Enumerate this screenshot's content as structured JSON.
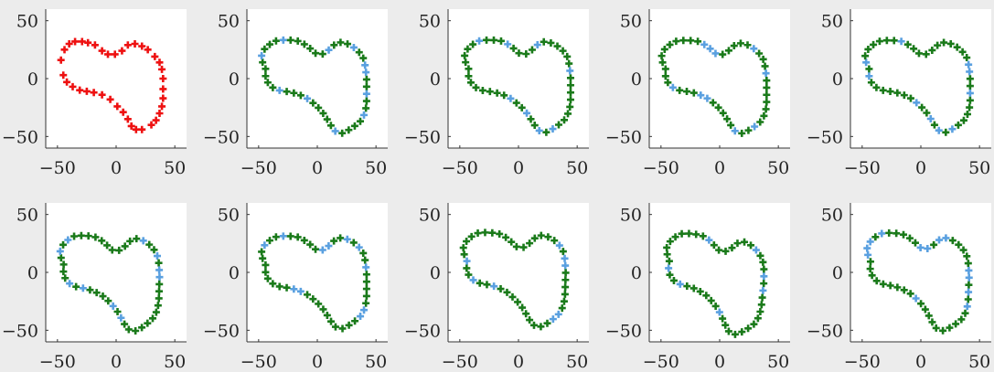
{
  "colors": {
    "figure_background": "#ececec",
    "axes_background": "#ffffff",
    "axis_line": "#333333",
    "reference_marker": "#ee1111",
    "green_marker": "#1a7a1a",
    "blue_marker": "#5aa0e0"
  },
  "chart_data": {
    "type": "scatter",
    "layout": "2 rows x 5 columns small multiples",
    "marker": "plus",
    "xlim": [
      -60,
      60
    ],
    "ylim": [
      -60,
      60
    ],
    "xticks": [
      -50,
      0,
      50
    ],
    "yticks": [
      -50,
      0,
      50
    ],
    "xtick_labels": [
      "−50",
      "0",
      "50"
    ],
    "ytick_labels": [
      "−50",
      "0",
      "50"
    ],
    "grid": false,
    "legend": "none",
    "base_shape": [
      [
        -42,
        8
      ],
      [
        -46,
        17
      ],
      [
        -42,
        26
      ],
      [
        -34,
        31
      ],
      [
        -25,
        32
      ],
      [
        -16,
        31
      ],
      [
        -8,
        27
      ],
      [
        -2,
        21
      ],
      [
        4,
        20
      ],
      [
        10,
        24
      ],
      [
        15,
        29
      ],
      [
        20,
        30
      ],
      [
        26,
        28
      ],
      [
        32,
        24
      ],
      [
        37,
        18
      ],
      [
        39,
        10
      ],
      [
        40,
        0
      ],
      [
        40,
        -10
      ],
      [
        40,
        -20
      ],
      [
        39,
        -28
      ],
      [
        35,
        -35
      ],
      [
        28,
        -41
      ],
      [
        20,
        -45
      ],
      [
        14,
        -43
      ],
      [
        10,
        -37
      ],
      [
        6,
        -30
      ],
      [
        0,
        -23
      ],
      [
        -7,
        -17
      ],
      [
        -15,
        -13
      ],
      [
        -22,
        -11
      ],
      [
        -30,
        -10
      ],
      [
        -37,
        -7
      ],
      [
        -42,
        -1
      ]
    ],
    "panels": [
      {
        "row": 0,
        "col": 0,
        "colors": [
          "red"
        ],
        "points": [
          [
            -47,
            16
          ],
          [
            -44,
            25
          ],
          [
            -40,
            30
          ],
          [
            -35,
            32
          ],
          [
            -29,
            32
          ],
          [
            -24,
            31
          ],
          [
            -18,
            29
          ],
          [
            -12,
            24
          ],
          [
            -7,
            21
          ],
          [
            -1,
            21
          ],
          [
            5,
            24
          ],
          [
            10,
            29
          ],
          [
            16,
            30
          ],
          [
            22,
            28
          ],
          [
            27,
            25
          ],
          [
            33,
            19
          ],
          [
            37,
            14
          ],
          [
            39,
            8
          ],
          [
            40,
            0
          ],
          [
            40,
            -9
          ],
          [
            40,
            -17
          ],
          [
            39,
            -24
          ],
          [
            37,
            -30
          ],
          [
            34,
            -36
          ],
          [
            30,
            -40
          ],
          [
            22,
            -44
          ],
          [
            17,
            -44
          ],
          [
            13,
            -41
          ],
          [
            10,
            -35
          ],
          [
            6,
            -29
          ],
          [
            1,
            -24
          ],
          [
            -5,
            -18
          ],
          [
            -12,
            -14
          ],
          [
            -19,
            -12
          ],
          [
            -25,
            -11
          ],
          [
            -31,
            -10
          ],
          [
            -37,
            -7
          ],
          [
            -42,
            -3
          ],
          [
            -45,
            3
          ]
        ]
      },
      {
        "row": 0,
        "col": 1,
        "colors": [
          "green",
          "blue"
        ],
        "transform": [
          0,
          0,
          0,
          1.05,
          1.05,
          0,
          0
        ]
      },
      {
        "row": 0,
        "col": 2,
        "colors": [
          "green",
          "blue"
        ],
        "transform": [
          0,
          2,
          0,
          1.06,
          1.05,
          0.25,
          11
        ]
      },
      {
        "row": 0,
        "col": 3,
        "colors": [
          "green",
          "blue"
        ],
        "transform": [
          0,
          -2,
          0,
          1.05,
          1.04,
          -0.2,
          22
        ]
      },
      {
        "row": 0,
        "col": 4,
        "colors": [
          "green",
          "blue"
        ],
        "transform": [
          0,
          0,
          0,
          1.05,
          1.04,
          0.1,
          33
        ]
      },
      {
        "row": 1,
        "col": 0,
        "colors": [
          "green",
          "blue"
        ],
        "transform": [
          -0.03,
          -3,
          -3,
          1,
          1.07,
          0.3,
          44
        ]
      },
      {
        "row": 1,
        "col": 1,
        "colors": [
          "green",
          "blue"
        ],
        "transform": [
          0,
          0,
          -2,
          1.05,
          1.05,
          0.2,
          55
        ]
      },
      {
        "row": 1,
        "col": 2,
        "colors": [
          "green",
          "blue"
        ],
        "transform": [
          -0.03,
          -1,
          0,
          1.03,
          1.06,
          0.4,
          66
        ]
      },
      {
        "row": 1,
        "col": 3,
        "colors": [
          "green",
          "blue"
        ],
        "transform": [
          -0.1,
          -2,
          -3,
          1,
          1.07,
          -0.3,
          77
        ]
      },
      {
        "row": 1,
        "col": 4,
        "colors": [
          "green",
          "blue"
        ],
        "transform": [
          -0.04,
          0,
          -1,
          1.03,
          1.07,
          -0.2,
          88
        ]
      }
    ]
  }
}
